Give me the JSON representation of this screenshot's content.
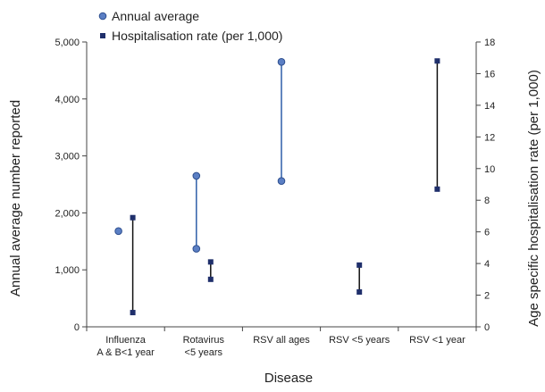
{
  "chart_data": {
    "type": "range",
    "xlabel": "Disease",
    "ylabel_left": "Annual average number reported",
    "ylabel_right": "Age specific hospitalisation rate (per 1,000)",
    "categories": [
      [
        "Influenza",
        "A & B<1 year"
      ],
      [
        "Rotavirus",
        "<5 years"
      ],
      [
        "RSV all ages"
      ],
      [
        "RSV <5 years"
      ],
      [
        "RSV <1 year"
      ]
    ],
    "left_axis": {
      "min": 0,
      "max": 5000,
      "ticks": [
        0,
        1000,
        2000,
        3000,
        4000,
        5000
      ],
      "tick_labels": [
        "0",
        "1,000",
        "2,000",
        "3,000",
        "4,000",
        "5,000"
      ]
    },
    "right_axis": {
      "min": 0,
      "max": 18,
      "ticks": [
        0,
        2,
        4,
        6,
        8,
        10,
        12,
        14,
        16,
        18
      ],
      "tick_labels": [
        "0",
        "2",
        "4",
        "6",
        "8",
        "10",
        "12",
        "14",
        "16",
        "18"
      ]
    },
    "series": [
      {
        "name": "Annual average",
        "axis": "left",
        "marker": "circle",
        "color": "#5b7fc4",
        "line_color": "#2e5fa8",
        "ranges": [
          {
            "category_index": 0,
            "low": 1680,
            "high": 1680
          },
          {
            "category_index": 1,
            "low": 1370,
            "high": 2650
          },
          {
            "category_index": 2,
            "low": 2560,
            "high": 4650
          }
        ]
      },
      {
        "name": "Hospitalisation rate (per 1,000)",
        "axis": "right",
        "marker": "square",
        "color": "#1f2f6b",
        "line_color": "#111111",
        "ranges": [
          {
            "category_index": 0,
            "low": 0.9,
            "high": 6.9
          },
          {
            "category_index": 1,
            "low": 3.0,
            "high": 4.1
          },
          {
            "category_index": 3,
            "low": 2.2,
            "high": 3.9
          },
          {
            "category_index": 4,
            "low": 8.7,
            "high": 16.8
          }
        ]
      }
    ],
    "legend_position": "top-left"
  }
}
